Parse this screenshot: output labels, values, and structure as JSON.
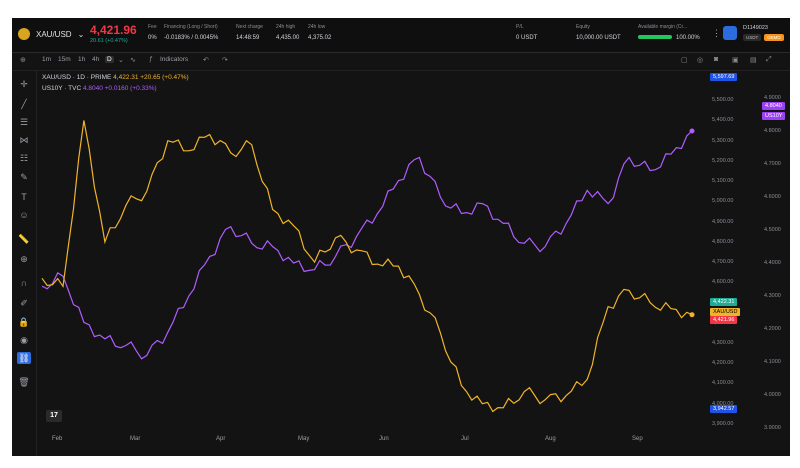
{
  "header": {
    "symbol": "XAU/USD",
    "price": "4,421.96",
    "change": "20.61 (+0.47%)",
    "stats": [
      {
        "label": "Fee",
        "value": "0%"
      },
      {
        "label": "Financing (Long / Short)",
        "value": "-0.0183% / 0.0045%"
      },
      {
        "label": "Next charge",
        "value": "14:48:59"
      },
      {
        "label": "24h high",
        "value": "4,435.00"
      },
      {
        "label": "24h low",
        "value": "4,375.02"
      },
      {
        "label": "P/L",
        "value": "0 USDT"
      },
      {
        "label": "Equity",
        "value": "10,000.00 USDT"
      },
      {
        "label": "Available margin (Cr...",
        "value": "100.00%"
      }
    ],
    "account_id": "D1149023",
    "currency_tag": "USDT",
    "mode_tag": "DEMO"
  },
  "toolbar": {
    "timeframes": [
      "1m",
      "15m",
      "1h",
      "4h",
      "D"
    ],
    "active_timeframe": "D",
    "indicators_label": "Indicators"
  },
  "legend": {
    "main_line": "XAU/USD · 1D · PRIME",
    "main_values": "4,422.31 +20.65 (+0.47%)",
    "compare_line": "US10Y · TVC",
    "compare_values": "4.8040 +0.0160 (+0.33%)"
  },
  "chart_data": {
    "type": "line",
    "x_labels": [
      "Feb",
      "Mar",
      "Apr",
      "May",
      "Jun",
      "Jul",
      "Aug",
      "Sep"
    ],
    "left_axis": [
      "5,500.00",
      "5,400.00",
      "5,300.00",
      "5,200.00",
      "5,100.00",
      "5,000.00",
      "4,900.00",
      "4,800.00",
      "4,700.00",
      "4,600.00",
      "4,500.00",
      "4,400.00",
      "4,300.00",
      "4,200.00",
      "4,100.00",
      "4,000.00",
      "3,900.00"
    ],
    "right_axis": [
      "4.9000",
      "4.8000",
      "4.7000",
      "4.6000",
      "4.5000",
      "4.4000",
      "4.3000",
      "4.2000",
      "4.1000",
      "4.0000",
      "3.9000"
    ],
    "series": [
      {
        "name": "XAU/USD",
        "color": "#f0b429",
        "values": [
          4620,
          4580,
          5400,
          4800,
          4980,
          5050,
          5300,
          5250,
          5330,
          5240,
          5280,
          4960,
          4880,
          4700,
          4820,
          4760,
          4690,
          4680,
          4540,
          4350,
          4090,
          4000,
          3980,
          4060,
          4020,
          4040,
          4120,
          4480,
          4560,
          4500,
          4470,
          4440
        ]
      },
      {
        "name": "US10Y",
        "color": "#b05cff",
        "values": [
          4.33,
          4.36,
          4.22,
          4.17,
          4.15,
          4.12,
          4.19,
          4.3,
          4.42,
          4.51,
          4.46,
          4.45,
          4.4,
          4.38,
          4.42,
          4.48,
          4.55,
          4.65,
          4.72,
          4.6,
          4.55,
          4.58,
          4.52,
          4.46,
          4.45,
          4.52,
          4.62,
          4.58,
          4.72,
          4.68,
          4.73,
          4.8
        ]
      }
    ],
    "price_labels": {
      "high": "5,597.69",
      "low": "3,942.57",
      "ask": "4,422.31",
      "bid": "4,421.96",
      "us10y_value": "4.8040",
      "us10y_name": "US10Y",
      "xau_tag": "XAU/USD"
    },
    "colors": {
      "xau": "#f0b429",
      "us10y": "#b05cff",
      "ask": "#22ab94",
      "bid": "#f23645",
      "high": "#2962ff"
    }
  }
}
